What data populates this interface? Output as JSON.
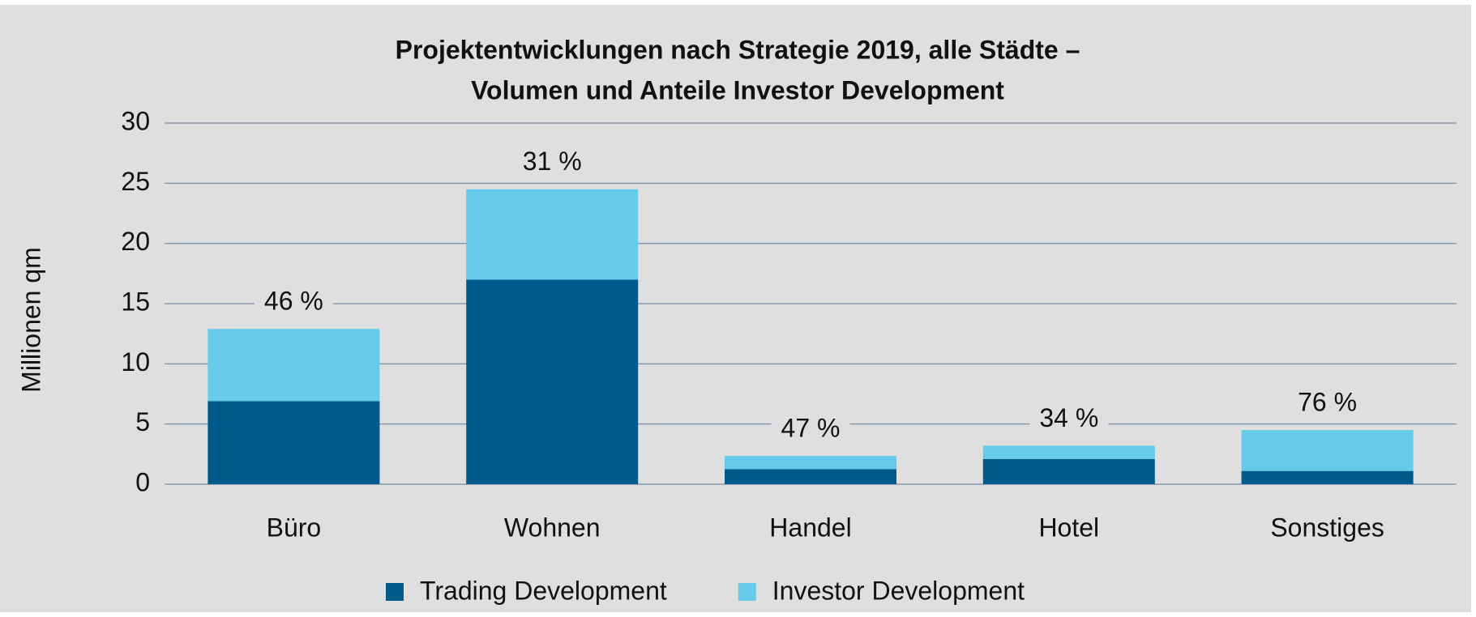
{
  "chart_data": {
    "type": "stacked_bar",
    "title": [
      "Projektentwicklungen nach Strategie 2019, alle Städte –",
      "Volumen und Anteile Investor Development"
    ],
    "ylabel": "Millionen qm",
    "categories": [
      "Büro",
      "Wohnen",
      "Handel",
      "Hotel",
      "Sonstiges"
    ],
    "series": [
      {
        "name": "Trading Development",
        "color": "#005a8c",
        "values": [
          6.9,
          17.0,
          1.25,
          2.1,
          1.1
        ]
      },
      {
        "name": "Investor Development",
        "color": "#66cbe9",
        "values": [
          6.0,
          7.5,
          1.1,
          1.1,
          3.4
        ]
      }
    ],
    "shares": [
      46,
      31,
      47,
      34,
      76
    ],
    "share_labels": [
      "46 %",
      "31 %",
      "47 %",
      "34 %",
      "76 %"
    ],
    "ylim": [
      0,
      30
    ],
    "yticks": [
      0,
      5,
      10,
      15,
      20,
      25,
      30
    ],
    "grid": true,
    "legend": "bottom"
  }
}
